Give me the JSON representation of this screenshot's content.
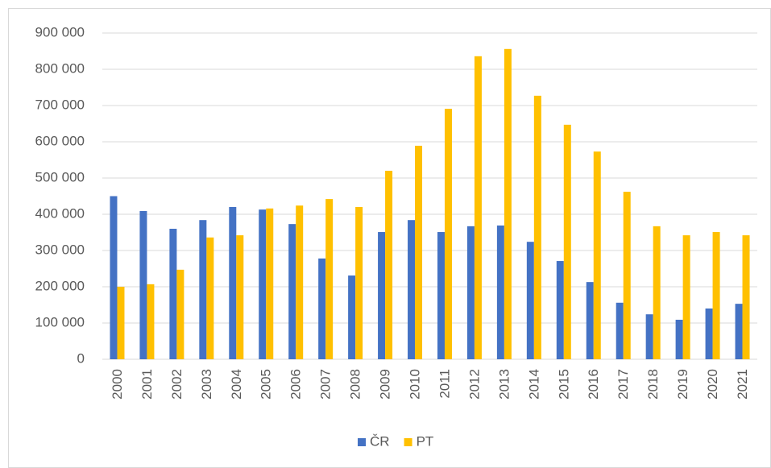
{
  "chart_data": {
    "type": "bar",
    "categories": [
      "2000",
      "2001",
      "2002",
      "2003",
      "2004",
      "2005",
      "2006",
      "2007",
      "2008",
      "2009",
      "2010",
      "2011",
      "2012",
      "2013",
      "2014",
      "2015",
      "2016",
      "2017",
      "2018",
      "2019",
      "2020",
      "2021"
    ],
    "series": [
      {
        "name": "ČR",
        "color": "#4472c4",
        "values": [
          450000,
          409000,
          360000,
          384000,
          420000,
          413000,
          373000,
          278000,
          231000,
          351000,
          384000,
          351000,
          367000,
          369000,
          324000,
          271000,
          213000,
          156000,
          124000,
          109000,
          140000,
          153000
        ]
      },
      {
        "name": "PT",
        "color": "#ffc000",
        "values": [
          200000,
          207000,
          247000,
          336000,
          342000,
          416000,
          424000,
          442000,
          420000,
          520000,
          589000,
          691000,
          836000,
          856000,
          727000,
          647000,
          573000,
          462000,
          367000,
          342000,
          351000,
          342000
        ]
      }
    ],
    "ylim": [
      0,
      900000
    ],
    "yticks": [
      0,
      {
        "value": 100000,
        "label": "100 000"
      },
      {
        "value": 200000,
        "label": "200 000"
      },
      {
        "value": 300000,
        "label": "300 000"
      },
      {
        "value": 400000,
        "label": "400 000"
      },
      {
        "value": 500000,
        "label": "500 000"
      },
      {
        "value": 600000,
        "label": "600 000"
      },
      {
        "value": 700000,
        "label": "700 000"
      },
      {
        "value": 800000,
        "label": "800 000"
      },
      {
        "value": 900000,
        "label": "900 000"
      }
    ],
    "grid": true,
    "legend": "bottom"
  }
}
